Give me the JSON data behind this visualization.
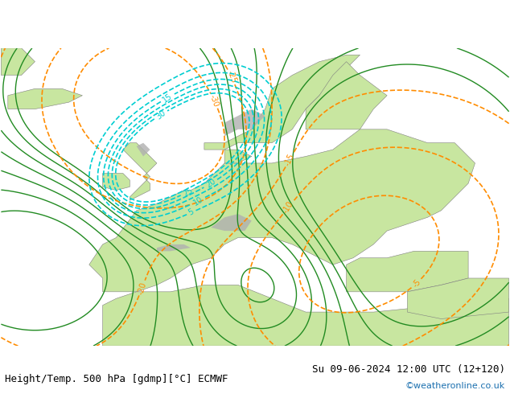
{
  "title_left": "Height/Temp. 500 hPa [gdmp][°C] ECMWF",
  "title_right": "Su 09-06-2024 12:00 UTC (12+120)",
  "credit": "©weatheronline.co.uk",
  "background_color": "#ffffff",
  "land_color": "#c8e6a0",
  "sea_color": "#ffffff",
  "gray_color": "#b0b0b0",
  "z500_color": "#000000",
  "temp_color": "#ff8c00",
  "rain_color": "#00ced1",
  "z850_color": "#228b22",
  "font_size_title": 9,
  "font_size_credit": 8
}
